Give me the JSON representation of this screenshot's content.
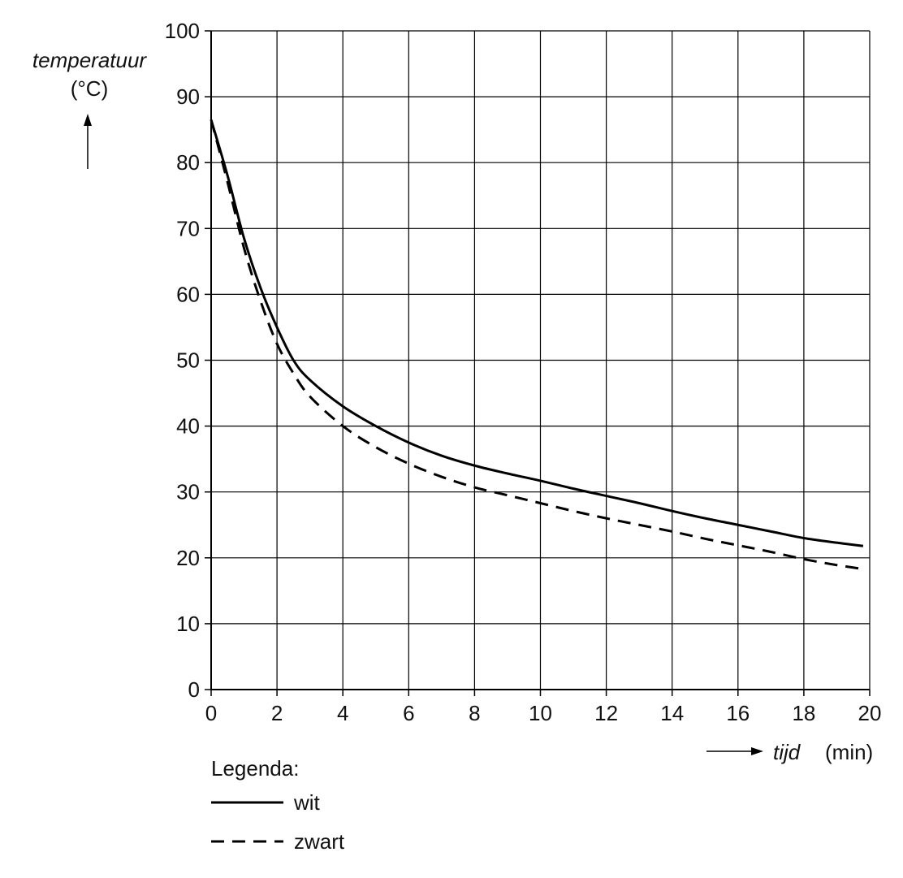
{
  "chart_data": {
    "type": "line",
    "ylabel": "temperatuur",
    "ylabel_unit": "(°C)",
    "xlabel": "tijd",
    "xlabel_unit": "(min)",
    "xlim": [
      0,
      20
    ],
    "ylim": [
      0,
      100
    ],
    "x_ticks": [
      0,
      2,
      4,
      6,
      8,
      10,
      12,
      14,
      16,
      18,
      20
    ],
    "y_ticks": [
      0,
      10,
      20,
      30,
      40,
      50,
      60,
      70,
      80,
      90,
      100
    ],
    "grid": true,
    "legend": {
      "title": "Legenda:",
      "placement": "bottom-left"
    },
    "series": [
      {
        "name": "wit",
        "style": "solid",
        "color": "#000000",
        "x": [
          0,
          0.5,
          1,
          1.5,
          2,
          2.5,
          3,
          4,
          5,
          6,
          7,
          8,
          9,
          10,
          11,
          12,
          13,
          14,
          15,
          16,
          17,
          18,
          19,
          19.8
        ],
        "y": [
          86.5,
          78,
          68.5,
          61,
          55,
          50,
          47,
          43,
          40,
          37.5,
          35.5,
          34,
          32.8,
          31.7,
          30.5,
          29.4,
          28.3,
          27.1,
          26,
          25,
          24,
          23,
          22.3,
          21.8
        ]
      },
      {
        "name": "zwart",
        "style": "dashed",
        "color": "#000000",
        "x": [
          0,
          0.5,
          1,
          1.5,
          2,
          2.5,
          3,
          4,
          5,
          6,
          7,
          8,
          9,
          10,
          11,
          12,
          13,
          14,
          15,
          16,
          17,
          18,
          19,
          19.8
        ],
        "y": [
          86.5,
          77,
          67,
          59,
          52.5,
          48,
          44.5,
          40,
          36.8,
          34.3,
          32.3,
          30.7,
          29.5,
          28.3,
          27.1,
          26,
          25,
          24,
          22.9,
          21.9,
          20.9,
          19.8,
          18.9,
          18.3
        ]
      }
    ]
  }
}
